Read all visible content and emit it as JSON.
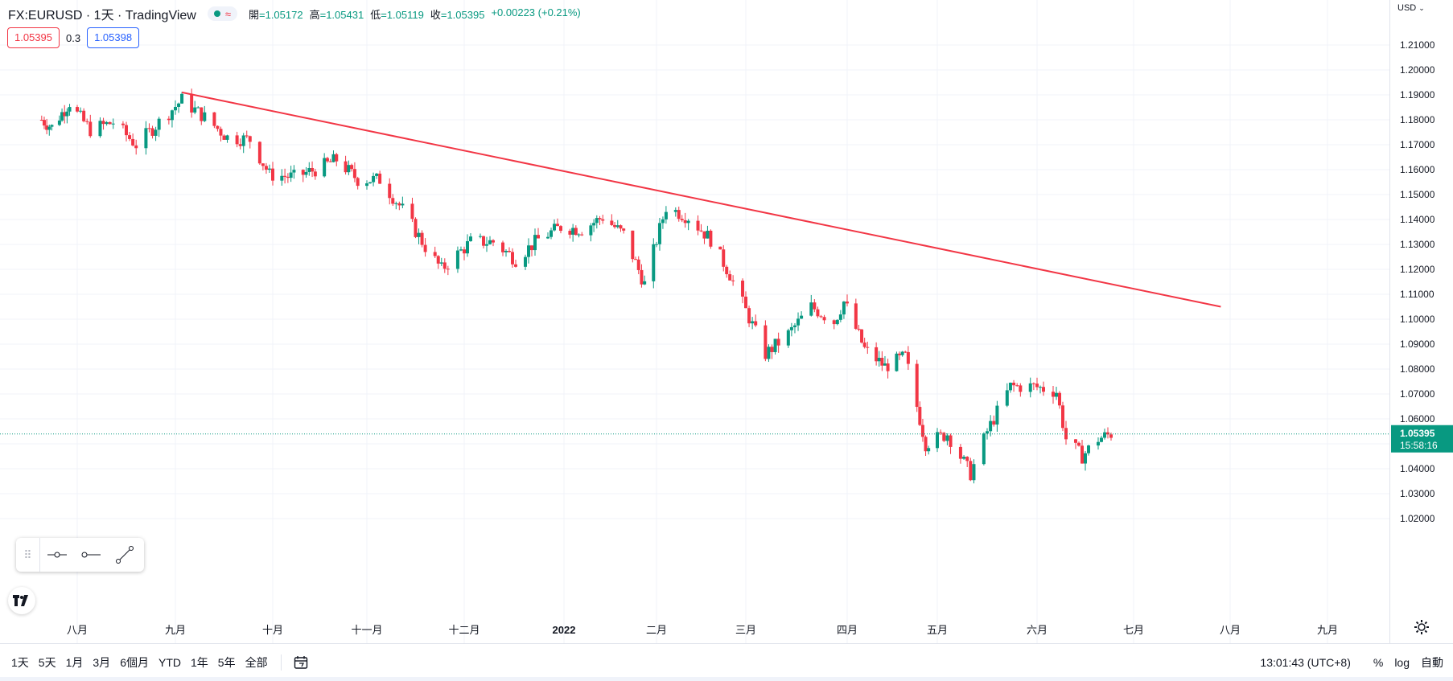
{
  "header": {
    "symbol_title": "FX:EURUSD · 1天 · TradingView",
    "market_status_icon": "green-dot",
    "approx_symbol": "≈",
    "ohlc": [
      {
        "label": "開",
        "value": "=1.05172"
      },
      {
        "label": "高",
        "value": "=1.05431"
      },
      {
        "label": "低",
        "value": "=1.05119"
      },
      {
        "label": "收",
        "value": "=1.05395"
      }
    ],
    "change": "+0.00223 (+0.21%)"
  },
  "quote": {
    "bid": "1.05395",
    "spread": "0.3",
    "ask": "1.05398"
  },
  "price_axis": {
    "currency": "USD",
    "last_price": "1.05395",
    "countdown": "15:58:16"
  },
  "time_axis": {
    "labels": [
      "八月",
      "九月",
      "十月",
      "十一月",
      "十二月",
      "2022",
      "二月",
      "三月",
      "四月",
      "五月",
      "六月",
      "七月",
      "八月",
      "九月"
    ]
  },
  "bottom_bar": {
    "ranges": [
      "1天",
      "5天",
      "1月",
      "3月",
      "6個月",
      "YTD",
      "1年",
      "5年",
      "全部"
    ],
    "clock": "13:01:43 (UTC+8)",
    "percent_label": "%",
    "log_label": "log",
    "auto_label": "自動"
  },
  "colors": {
    "up": "#089981",
    "down": "#f23645",
    "trendline": "#f23645",
    "grid": "#f0f3fa"
  },
  "chart_data": {
    "type": "candlestick",
    "symbol": "FX:EURUSD",
    "interval": "1D",
    "ylim": [
      1.015,
      1.225
    ],
    "yticks": [
      1.02,
      1.03,
      1.04,
      1.05,
      1.06,
      1.07,
      1.08,
      1.09,
      1.1,
      1.11,
      1.12,
      1.13,
      1.14,
      1.15,
      1.16,
      1.17,
      1.18,
      1.19,
      1.2,
      1.21
    ],
    "close_path": [
      [
        "2021-07-19",
        1.18
      ],
      [
        "2021-07-23",
        1.177
      ],
      [
        "2021-07-30",
        1.187
      ],
      [
        "2021-08-06",
        1.176
      ],
      [
        "2021-08-13",
        1.179
      ],
      [
        "2021-08-20",
        1.17
      ],
      [
        "2021-08-27",
        1.179
      ],
      [
        "2021-09-03",
        1.188
      ],
      [
        "2021-09-10",
        1.181
      ],
      [
        "2021-09-17",
        1.173
      ],
      [
        "2021-09-24",
        1.172
      ],
      [
        "2021-09-30",
        1.158
      ],
      [
        "2021-10-08",
        1.157
      ],
      [
        "2021-10-15",
        1.16
      ],
      [
        "2021-10-22",
        1.164
      ],
      [
        "2021-10-29",
        1.156
      ],
      [
        "2021-11-05",
        1.156
      ],
      [
        "2021-11-12",
        1.144
      ],
      [
        "2021-11-19",
        1.129
      ],
      [
        "2021-11-24",
        1.12
      ],
      [
        "2021-12-03",
        1.131
      ],
      [
        "2021-12-10",
        1.131
      ],
      [
        "2021-12-17",
        1.124
      ],
      [
        "2021-12-24",
        1.132
      ],
      [
        "2021-12-31",
        1.137
      ],
      [
        "2022-01-07",
        1.136
      ],
      [
        "2022-01-14",
        1.141
      ],
      [
        "2022-01-21",
        1.134
      ],
      [
        "2022-01-28",
        1.114
      ],
      [
        "2022-02-04",
        1.145
      ],
      [
        "2022-02-11",
        1.141
      ],
      [
        "2022-02-18",
        1.132
      ],
      [
        "2022-02-24",
        1.118
      ],
      [
        "2022-03-07",
        1.086
      ],
      [
        "2022-03-14",
        1.094
      ],
      [
        "2022-03-21",
        1.105
      ],
      [
        "2022-03-28",
        1.099
      ],
      [
        "2022-03-31",
        1.107
      ],
      [
        "2022-04-07",
        1.088
      ],
      [
        "2022-04-14",
        1.081
      ],
      [
        "2022-04-21",
        1.085
      ],
      [
        "2022-04-28",
        1.05
      ],
      [
        "2022-05-05",
        1.054
      ],
      [
        "2022-05-12",
        1.038
      ],
      [
        "2022-05-17",
        1.055
      ],
      [
        "2022-05-24",
        1.073
      ],
      [
        "2022-05-31",
        1.073
      ],
      [
        "2022-06-07",
        1.071
      ],
      [
        "2022-06-10",
        1.052
      ],
      [
        "2022-06-15",
        1.045
      ],
      [
        "2022-06-20",
        1.052
      ],
      [
        "2022-06-24",
        1.054
      ]
    ],
    "trendline": {
      "start": [
        "2021-09-03",
        1.191
      ],
      "end": [
        "2022-07-29",
        1.105
      ]
    },
    "last_price": 1.05395
  }
}
